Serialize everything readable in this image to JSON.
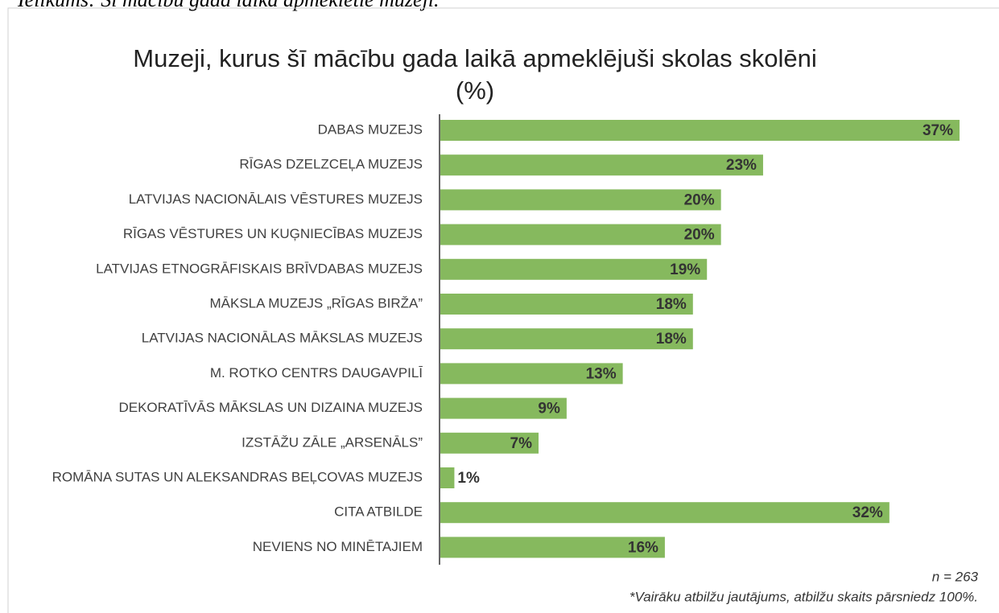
{
  "caption": "Ielikums: Šī mācību gada laikā apmeklētie muzeji.",
  "chart_data": {
    "type": "bar",
    "orientation": "horizontal",
    "title": "Muzeji, kurus šī mācību gada laikā apmeklējuši skolas skolēni",
    "subtitle": "(%)",
    "categories": [
      "DABAS MUZEJS",
      "RĪGAS DZELZCEĻA MUZEJS",
      "LATVIJAS NACIONĀLAIS VĒSTURES MUZEJS",
      "RĪGAS VĒSTURES UN KUĢNIECĪBAS MUZEJS",
      "LATVIJAS ETNOGRĀFISKAIS BRĪVDABAS MUZEJS",
      "MĀKSLA MUZEJS „RĪGAS BIRŽA”",
      "LATVIJAS NACIONĀLAS MĀKSLAS MUZEJS",
      "M. ROTKO CENTRS DAUGAVPILĪ",
      "DEKORATĪVĀS MĀKSLAS UN DIZAINA MUZEJS",
      "IZSTĀŽU ZĀLE „ARSENĀLS”",
      "ROMĀNA SUTAS UN ALEKSANDRAS BEĻCOVAS MUZEJS",
      "CITA ATBILDE",
      "NEVIENS NO MINĒTAJIEM"
    ],
    "values": [
      37,
      23,
      20,
      20,
      19,
      18,
      18,
      13,
      9,
      7,
      1,
      32,
      16
    ],
    "value_labels": [
      "37%",
      "23%",
      "20%",
      "20%",
      "19%",
      "18%",
      "18%",
      "13%",
      "9%",
      "7%",
      "1%",
      "32%",
      "16%"
    ],
    "color": "#86b95e",
    "notes": [
      "n = 263",
      "*Vairāku atbilžu jautājums, atbilžu skaits pārsniedz 100%."
    ]
  }
}
